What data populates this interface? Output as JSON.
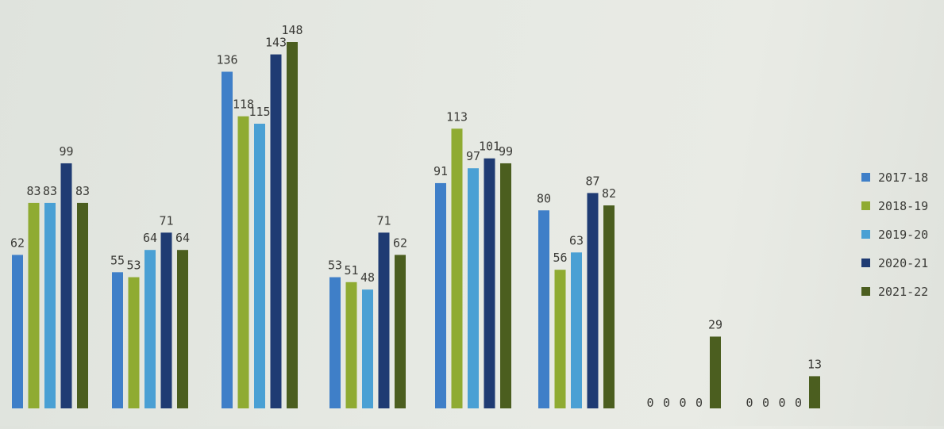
{
  "chart_data": {
    "type": "bar",
    "title": "",
    "xlabel": "",
    "ylabel": "",
    "ylim": [
      0,
      148
    ],
    "grid": false,
    "legend_position": "right",
    "categories": [
      "",
      "",
      "",
      "",
      "",
      "",
      "",
      ""
    ],
    "series": [
      {
        "name": "2017-18",
        "color": "#3f7fc8",
        "values": [
          62,
          55,
          136,
          53,
          91,
          80,
          0,
          0
        ]
      },
      {
        "name": "2018-19",
        "color": "#8fab32",
        "values": [
          83,
          53,
          118,
          51,
          113,
          56,
          0,
          0
        ]
      },
      {
        "name": "2019-20",
        "color": "#4aa0d4",
        "values": [
          83,
          64,
          115,
          48,
          97,
          63,
          0,
          0
        ]
      },
      {
        "name": "2020-21",
        "color": "#1f3b73",
        "values": [
          99,
          71,
          143,
          71,
          101,
          87,
          0,
          0
        ]
      },
      {
        "name": "2021-22",
        "color": "#4b5e1f",
        "values": [
          83,
          64,
          148,
          62,
          99,
          82,
          29,
          13
        ]
      }
    ]
  }
}
